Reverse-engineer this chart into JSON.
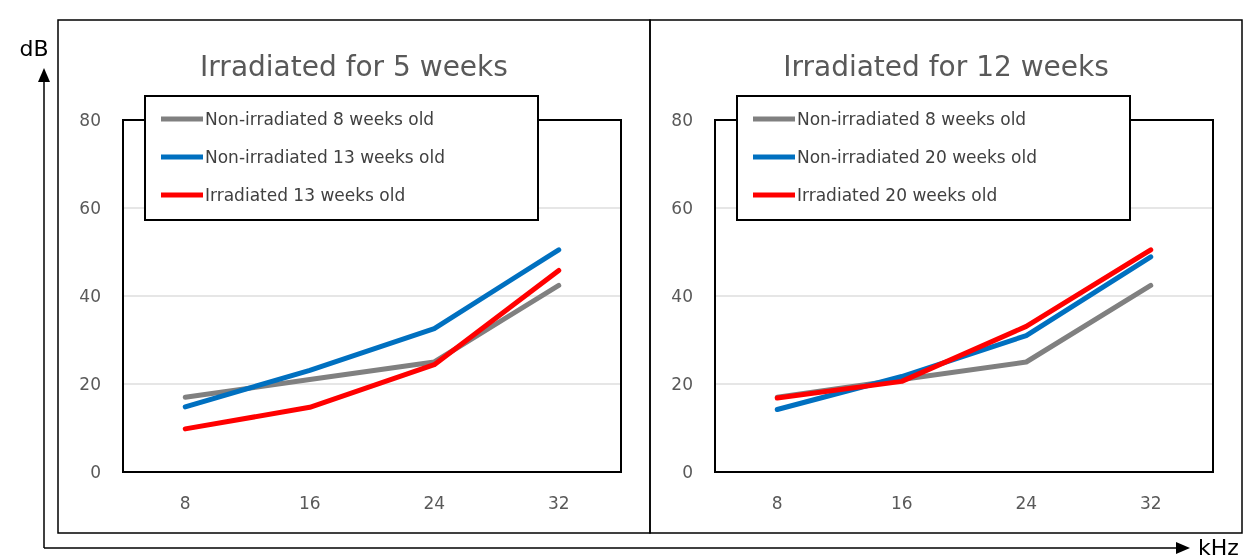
{
  "chart_data": [
    {
      "type": "line",
      "title": "Irradiated for 5 weeks",
      "ylabel": "dB",
      "categories": [
        "8",
        "16",
        "24",
        "32"
      ],
      "ylim": [
        0,
        80
      ],
      "yticks": [
        0,
        20,
        40,
        60,
        80
      ],
      "grid": "y",
      "legend": "top left",
      "marker": "none",
      "line_style": "solid",
      "series": [
        {
          "name": "Non-irradiated 8 weeks old",
          "color": "#808080",
          "values": [
            17,
            21,
            25,
            42.4
          ]
        },
        {
          "name": "Non-irradiated 13 weeks old",
          "color": "#0070c0",
          "values": [
            14.8,
            23.1,
            32.6,
            50.5
          ]
        },
        {
          "name": "Irradiated 13 weeks old",
          "color": "#ff0000",
          "values": [
            9.8,
            14.7,
            24.4,
            45.8
          ]
        }
      ]
    },
    {
      "type": "line",
      "title": "Irradiated for 12 weeks",
      "xlabel": "kHz",
      "categories": [
        "8",
        "16",
        "24",
        "32"
      ],
      "ylim": [
        0,
        80
      ],
      "yticks": [
        0,
        20,
        40,
        60,
        80
      ],
      "grid": "y",
      "legend": "top left",
      "marker": "none",
      "line_style": "solid",
      "series": [
        {
          "name": "Non-irradiated 8 weeks old",
          "color": "#808080",
          "values": [
            17,
            21,
            25,
            42.4
          ]
        },
        {
          "name": "Non-irradiated 20 weeks old",
          "color": "#0070c0",
          "values": [
            14.2,
            21.7,
            31,
            48.9
          ]
        },
        {
          "name": "Irradiated 20 weeks old",
          "color": "#ff0000",
          "values": [
            16.8,
            20.6,
            33.1,
            50.5
          ]
        }
      ]
    }
  ]
}
